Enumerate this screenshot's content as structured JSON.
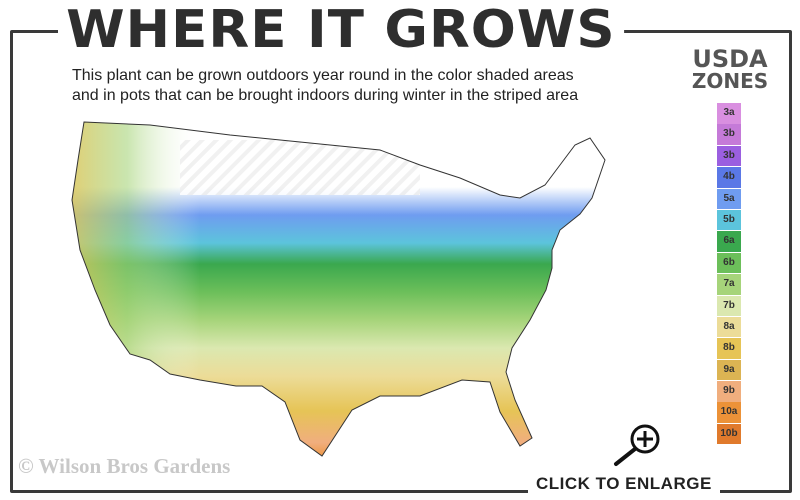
{
  "header": {
    "title": "WHERE IT GROWS",
    "subtitle_line1": "This plant can be grown outdoors year round in the color shaded areas",
    "subtitle_line2": "and in pots that can be brought indoors during winter in the striped area"
  },
  "legend": {
    "title_line1": "USDA",
    "title_line2": "ZONES",
    "zones": [
      {
        "label": "3a",
        "color": "#d98fe0"
      },
      {
        "label": "3b",
        "color": "#c57ad8"
      },
      {
        "label": "3b",
        "color": "#9b5fe0"
      },
      {
        "label": "4b",
        "color": "#5a78e6"
      },
      {
        "label": "5a",
        "color": "#6f9cf0"
      },
      {
        "label": "5b",
        "color": "#5cc4dc"
      },
      {
        "label": "6a",
        "color": "#3aa84e"
      },
      {
        "label": "6b",
        "color": "#6cbf5a"
      },
      {
        "label": "7a",
        "color": "#a6d47a"
      },
      {
        "label": "7b",
        "color": "#dbe8b0"
      },
      {
        "label": "8a",
        "color": "#ecdc98"
      },
      {
        "label": "8b",
        "color": "#e6c456"
      },
      {
        "label": "9a",
        "color": "#dcb453"
      },
      {
        "label": "9b",
        "color": "#f0ae7e"
      },
      {
        "label": "10a",
        "color": "#ec9238"
      },
      {
        "label": "10b",
        "color": "#e07a2c"
      }
    ]
  },
  "footer": {
    "copyright": "© Wilson Bros Gardens",
    "enlarge_label": "CLICK TO ENLARGE",
    "enlarge_icon": "magnifier-plus-icon"
  }
}
